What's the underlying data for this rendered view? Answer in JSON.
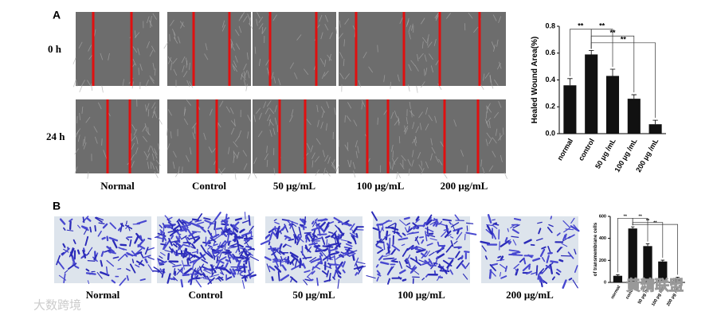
{
  "panels": {
    "a": {
      "label": "A",
      "row_labels": [
        "0 h",
        "24 h"
      ],
      "column_labels": [
        "Normal",
        "Control",
        "50 μg/mL",
        "100 μg/mL",
        "200 μg/mL"
      ]
    },
    "b": {
      "label": "B",
      "column_labels": [
        "Normal",
        "Control",
        "50 μg/mL",
        "100 μg/mL",
        "200 μg/mL"
      ]
    }
  },
  "chart_data": [
    {
      "type": "bar",
      "ylabel": "Healed Wound Area(%)",
      "categories": [
        "normal",
        "control",
        "50 μg /mL",
        "100 μg /mL",
        "200 μg /mL"
      ],
      "values": [
        0.36,
        0.59,
        0.43,
        0.26,
        0.07
      ],
      "errors": [
        0.05,
        0.03,
        0.05,
        0.03,
        0.03
      ],
      "color": "#111111",
      "ylim": [
        0,
        0.8
      ],
      "yticks": [
        {
          "value": 0,
          "label": "0.0"
        },
        {
          "value": 0.2,
          "label": "0.2"
        },
        {
          "value": 0.4,
          "label": "0.4"
        },
        {
          "value": 0.6,
          "label": "0.6"
        },
        {
          "value": 0.8,
          "label": "0.8"
        }
      ],
      "annotations": [
        "**",
        "**",
        "**",
        "**"
      ]
    },
    {
      "type": "bar",
      "ylabel": "of transmembrane cells",
      "categories": [
        "normal",
        "control",
        "50 μg /mL",
        "100 μg /mL",
        "200 μg /mL"
      ],
      "values": [
        60,
        490,
        330,
        190,
        40
      ],
      "errors": [
        10,
        15,
        20,
        12,
        8
      ],
      "color": "#111111",
      "ylim": [
        0,
        600
      ],
      "yticks": [
        0,
        200,
        400,
        600
      ],
      "annotations": [
        "**",
        "**",
        "**",
        "**"
      ]
    }
  ],
  "watermarks": [
    "大数跨境",
    "黄精联盟"
  ]
}
